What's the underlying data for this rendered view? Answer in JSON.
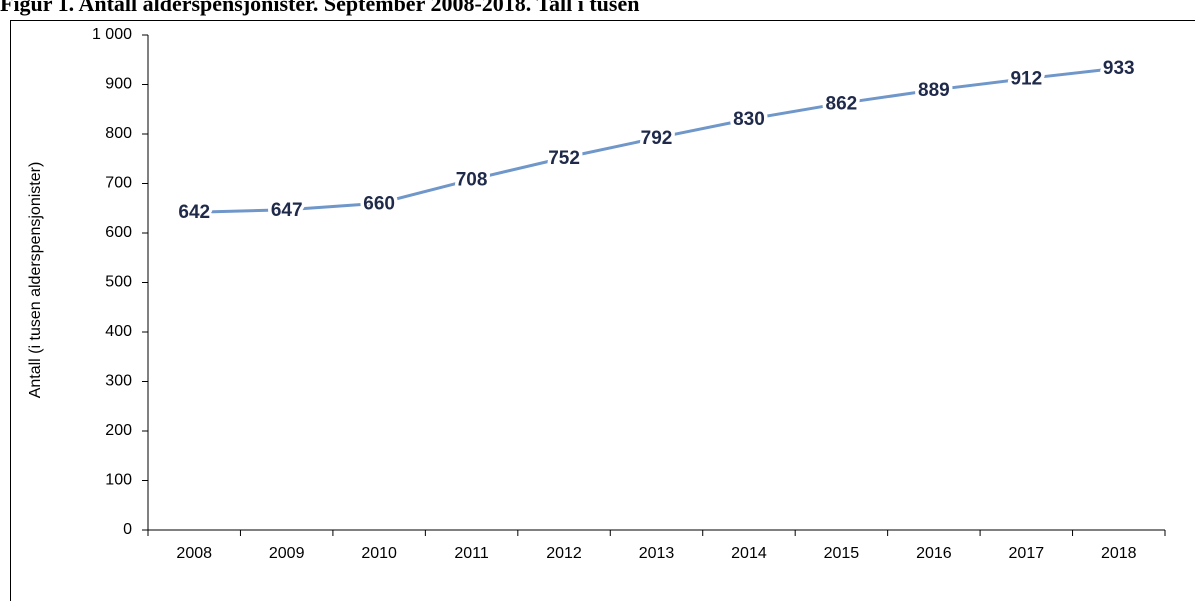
{
  "chart_data": {
    "type": "line",
    "title": "Figur 1. Antall alderspensjonister. September 2008-2018. Tall i tusen",
    "y_label": "Antall (i tusen alderspensjonister)",
    "categories": [
      "2008",
      "2009",
      "2010",
      "2011",
      "2012",
      "2013",
      "2014",
      "2015",
      "2016",
      "2017",
      "2018"
    ],
    "values": [
      642,
      647,
      660,
      708,
      752,
      792,
      830,
      862,
      889,
      912,
      933
    ],
    "color": "#7097c9",
    "ylim": [
      0,
      1000
    ],
    "yticks": [
      0,
      100,
      200,
      300,
      400,
      500,
      600,
      700,
      800,
      900,
      {
        "value": 1000,
        "label": "1 000"
      }
    ],
    "grid": false
  }
}
